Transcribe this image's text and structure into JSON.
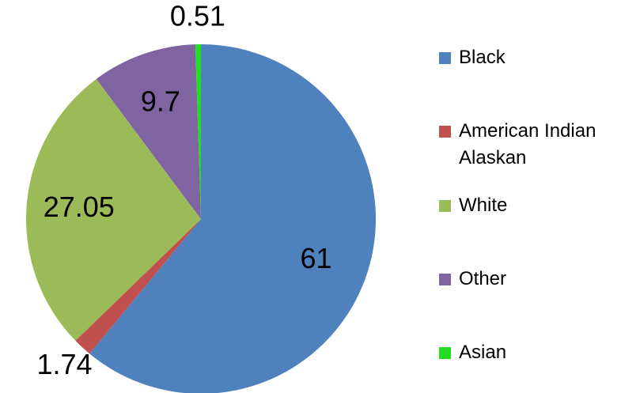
{
  "chart_data": {
    "type": "pie",
    "categories": [
      "Black",
      "American Indian Alaskan",
      "White",
      "Other",
      "Asian"
    ],
    "values": [
      61,
      1.74,
      27.05,
      9.7,
      0.51
    ],
    "colors": [
      "#4f81bd",
      "#c0504d",
      "#9bbb59",
      "#8064a2",
      "#22dd22"
    ],
    "legend": "right"
  }
}
